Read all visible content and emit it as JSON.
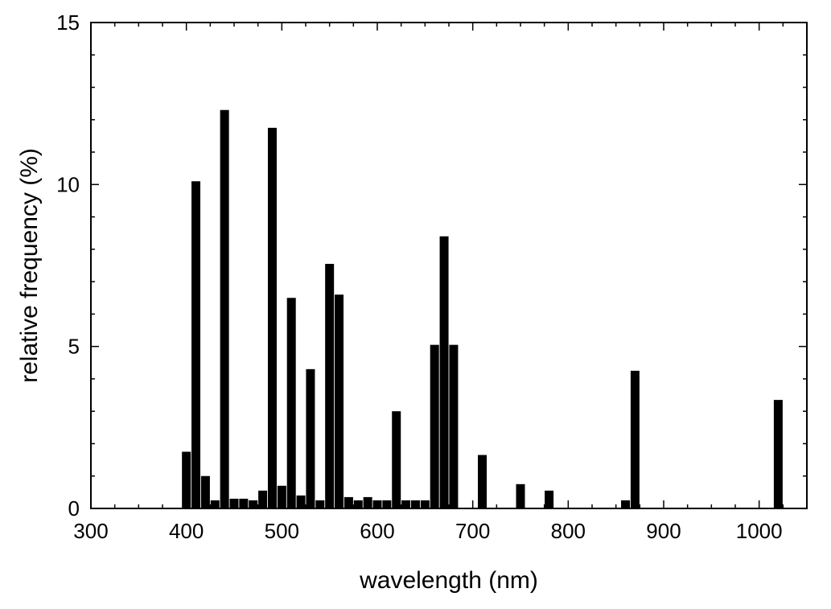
{
  "chart_data": {
    "type": "bar",
    "title": "",
    "xlabel": "wavelength (nm)",
    "ylabel": "relative frequency (%)",
    "xlim": [
      300,
      1050
    ],
    "ylim": [
      0,
      15
    ],
    "x_ticks": [
      300,
      400,
      500,
      600,
      700,
      800,
      900,
      1000
    ],
    "x_tick_labels": [
      "300",
      "400",
      "500",
      "600",
      "700",
      "800",
      "900",
      "1000"
    ],
    "y_ticks": [
      0,
      5,
      10,
      15
    ],
    "y_tick_labels": [
      "0",
      "5",
      "10",
      "15"
    ],
    "bar_color": "#000000",
    "grid": false,
    "legend": "none",
    "x": [
      400,
      410,
      420,
      430,
      440,
      450,
      460,
      470,
      480,
      490,
      500,
      510,
      520,
      530,
      540,
      550,
      560,
      570,
      580,
      590,
      600,
      610,
      620,
      630,
      640,
      650,
      660,
      670,
      680,
      710,
      750,
      780,
      860,
      870,
      1020
    ],
    "values": [
      1.75,
      10.1,
      1.0,
      0.25,
      12.3,
      0.3,
      0.3,
      0.25,
      0.55,
      11.75,
      0.7,
      6.5,
      0.4,
      4.3,
      0.25,
      7.55,
      6.6,
      0.35,
      0.25,
      0.35,
      0.25,
      0.25,
      3.0,
      0.25,
      0.25,
      0.25,
      5.05,
      8.4,
      5.05,
      1.65,
      0.75,
      0.55,
      0.25,
      4.25,
      3.35
    ]
  }
}
